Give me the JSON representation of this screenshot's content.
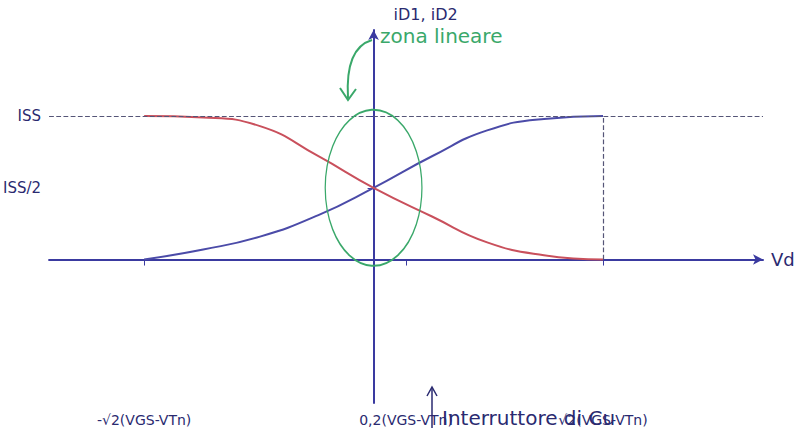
{
  "chart_data": {
    "type": "line",
    "x_label": "Vd",
    "y_label": "iD1, iD2",
    "x": [
      -1.414,
      -1.05,
      -0.7,
      -0.34,
      0,
      0.36,
      0.7,
      1.05,
      1.414
    ],
    "series": [
      {
        "color": "#4b4ba8",
        "values": [
          0,
          0.07,
          0.16,
          0.31,
          0.5,
          0.72,
          0.9,
          0.98,
          1
        ]
      },
      {
        "color": "#c9505c",
        "values": [
          1,
          0.99,
          0.93,
          0.72,
          0.5,
          0.3,
          0.12,
          0.03,
          0
        ]
      }
    ],
    "xlim": [
      -2,
      2.4
    ],
    "xticks": [
      {
        "value": -1.414,
        "label": "-√2(VGS-VTn)"
      },
      {
        "value": 0.2,
        "label": "0,2(VGS-VTn)"
      },
      {
        "value": 1.414,
        "label": "√2(VGS-VTn)"
      }
    ],
    "ylim": [
      -1,
      1.6
    ],
    "yticks": [
      {
        "value": 0.5,
        "label": "ISS/2"
      },
      {
        "value": 1,
        "label": "ISS"
      }
    ],
    "annotations": [
      {
        "text": "zona lineare",
        "color": "#3aa86a"
      },
      {
        "text": "Interruttore di Cu"
      }
    ],
    "grid": false,
    "line_style": "solid"
  }
}
